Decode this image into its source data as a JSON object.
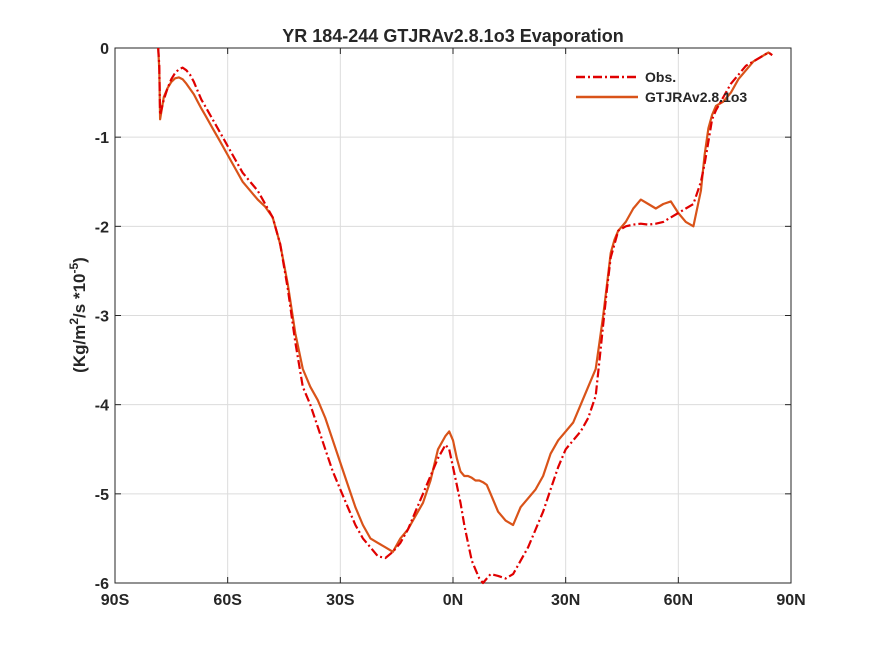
{
  "chart_data": {
    "type": "line",
    "title": "YR 184-244 GTJRAv2.8.1o3 Evaporation",
    "xlabel": "",
    "ylabel_parts": [
      "(Kg/m",
      "2",
      "/s *10",
      "-5",
      ")"
    ],
    "xlim": [
      -90,
      90
    ],
    "ylim": [
      -6,
      0
    ],
    "x_ticks": [
      -90,
      -60,
      -30,
      0,
      30,
      60,
      90
    ],
    "x_tick_labels": [
      "90S",
      "60S",
      "30S",
      "0N",
      "30N",
      "60N",
      "90N"
    ],
    "y_ticks": [
      0,
      -1,
      -2,
      -3,
      -4,
      -5,
      -6
    ],
    "y_tick_labels": [
      "0",
      "-1",
      "-2",
      "-3",
      "-4",
      "-5",
      "-6"
    ],
    "grid": true,
    "legend_position": "top-right",
    "series": [
      {
        "name": "Obs.",
        "color": "#e00000",
        "style": "dash-dot",
        "x": [
          -78.5,
          -78.2,
          -78,
          -77,
          -76,
          -75,
          -74,
          -73,
          -72,
          -71,
          -70,
          -69,
          -68,
          -67,
          -66,
          -64,
          -62,
          -60,
          -58,
          -56,
          -54,
          -52,
          -50,
          -48,
          -46,
          -44,
          -42,
          -40,
          -38,
          -36,
          -34,
          -32,
          -30,
          -28,
          -26,
          -24,
          -22,
          -20,
          -18,
          -16,
          -14,
          -12,
          -10,
          -8,
          -6,
          -4,
          -2,
          -1,
          0,
          1,
          2,
          3,
          4,
          5,
          6,
          7,
          8,
          9,
          10,
          12,
          14,
          16,
          18,
          20,
          22,
          24,
          26,
          28,
          30,
          32,
          34,
          36,
          38,
          39,
          40,
          41,
          42,
          43,
          44,
          46,
          48,
          50,
          52,
          54,
          56,
          58,
          60,
          62,
          64,
          66,
          67,
          68,
          69,
          70,
          72,
          74,
          76,
          78,
          80,
          82,
          84,
          85
        ],
        "y": [
          0,
          -0.2,
          -0.75,
          -0.58,
          -0.45,
          -0.35,
          -0.28,
          -0.24,
          -0.22,
          -0.25,
          -0.3,
          -0.38,
          -0.48,
          -0.58,
          -0.65,
          -0.8,
          -0.95,
          -1.1,
          -1.25,
          -1.4,
          -1.5,
          -1.6,
          -1.75,
          -1.9,
          -2.2,
          -2.7,
          -3.3,
          -3.8,
          -4.0,
          -4.25,
          -4.5,
          -4.75,
          -4.95,
          -5.15,
          -5.35,
          -5.5,
          -5.6,
          -5.7,
          -5.72,
          -5.65,
          -5.55,
          -5.4,
          -5.2,
          -5.0,
          -4.8,
          -4.6,
          -4.45,
          -4.5,
          -4.7,
          -4.9,
          -5.1,
          -5.35,
          -5.55,
          -5.75,
          -5.85,
          -5.95,
          -6.0,
          -5.95,
          -5.9,
          -5.92,
          -5.95,
          -5.9,
          -5.75,
          -5.6,
          -5.4,
          -5.2,
          -4.95,
          -4.7,
          -4.5,
          -4.4,
          -4.3,
          -4.15,
          -3.9,
          -3.5,
          -3.1,
          -2.7,
          -2.35,
          -2.2,
          -2.05,
          -2.0,
          -1.98,
          -1.97,
          -1.98,
          -1.97,
          -1.95,
          -1.9,
          -1.85,
          -1.8,
          -1.75,
          -1.5,
          -1.3,
          -1.05,
          -0.8,
          -0.7,
          -0.55,
          -0.4,
          -0.3,
          -0.2,
          -0.15,
          -0.1,
          -0.05,
          -0.08
        ]
      },
      {
        "name": "GTJRAv2.8.1o3",
        "color": "#d95319",
        "style": "solid",
        "x": [
          -78.5,
          -78.2,
          -78,
          -77,
          -76,
          -75,
          -74,
          -73,
          -72,
          -71,
          -70,
          -69,
          -68,
          -67,
          -66,
          -64,
          -62,
          -60,
          -58,
          -56,
          -54,
          -52,
          -50,
          -48,
          -46,
          -44,
          -42,
          -40,
          -38,
          -36,
          -34,
          -32,
          -30,
          -28,
          -26,
          -24,
          -22,
          -20,
          -18,
          -16,
          -14,
          -12,
          -10,
          -8,
          -6,
          -4,
          -2,
          -1,
          0,
          1,
          2,
          3,
          4,
          5,
          6,
          7,
          8,
          9,
          10,
          12,
          14,
          16,
          18,
          20,
          22,
          24,
          26,
          28,
          30,
          32,
          34,
          36,
          38,
          39,
          40,
          41,
          42,
          43,
          44,
          46,
          48,
          50,
          52,
          54,
          56,
          58,
          60,
          62,
          64,
          66,
          67,
          68,
          69,
          70,
          72,
          74,
          76,
          78,
          80,
          82,
          84,
          85
        ],
        "y": [
          0,
          -0.25,
          -0.8,
          -0.55,
          -0.45,
          -0.38,
          -0.34,
          -0.33,
          -0.35,
          -0.4,
          -0.46,
          -0.52,
          -0.6,
          -0.68,
          -0.75,
          -0.9,
          -1.05,
          -1.2,
          -1.35,
          -1.5,
          -1.6,
          -1.7,
          -1.78,
          -1.9,
          -2.2,
          -2.65,
          -3.2,
          -3.6,
          -3.8,
          -3.95,
          -4.15,
          -4.4,
          -4.65,
          -4.9,
          -5.15,
          -5.35,
          -5.5,
          -5.55,
          -5.6,
          -5.65,
          -5.5,
          -5.4,
          -5.25,
          -5.1,
          -4.85,
          -4.5,
          -4.35,
          -4.3,
          -4.4,
          -4.6,
          -4.75,
          -4.8,
          -4.8,
          -4.82,
          -4.85,
          -4.85,
          -4.87,
          -4.9,
          -5.0,
          -5.2,
          -5.3,
          -5.35,
          -5.15,
          -5.05,
          -4.95,
          -4.8,
          -4.55,
          -4.4,
          -4.3,
          -4.2,
          -4.0,
          -3.8,
          -3.6,
          -3.3,
          -3.0,
          -2.65,
          -2.3,
          -2.15,
          -2.05,
          -1.95,
          -1.8,
          -1.7,
          -1.75,
          -1.8,
          -1.75,
          -1.72,
          -1.85,
          -1.95,
          -2.0,
          -1.6,
          -1.2,
          -0.9,
          -0.75,
          -0.65,
          -0.6,
          -0.5,
          -0.35,
          -0.25,
          -0.15,
          -0.1,
          -0.05,
          -0.08
        ]
      }
    ]
  }
}
